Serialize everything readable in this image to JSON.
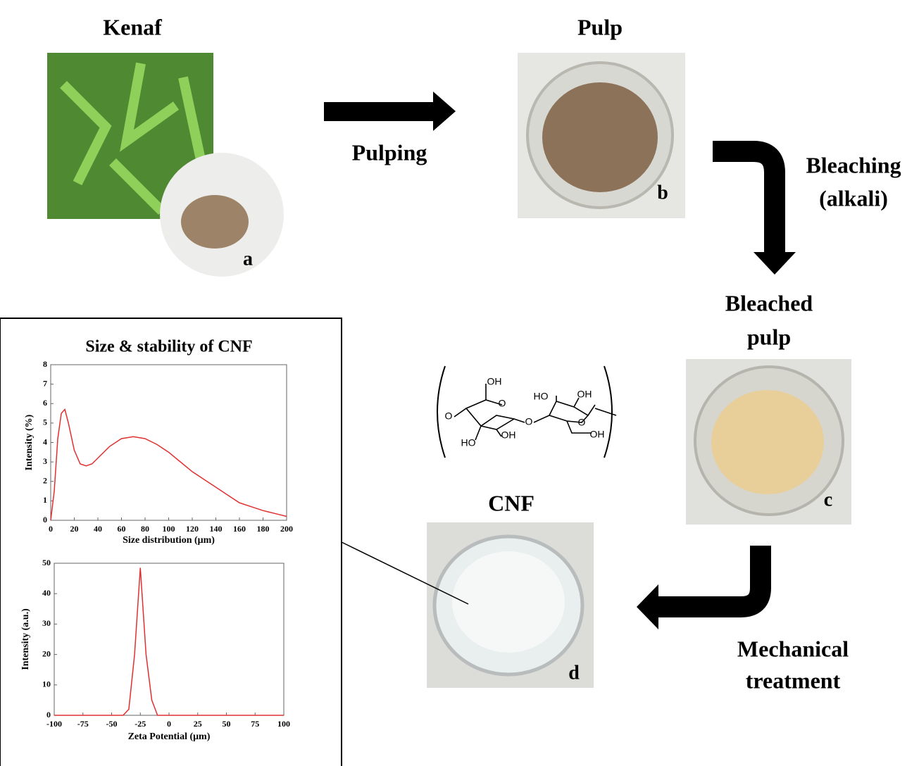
{
  "labels": {
    "kenaf": "Kenaf",
    "pulp": "Pulp",
    "pulping": "Pulping",
    "bleaching": [
      "Bleaching",
      "(alkali)"
    ],
    "bleached_pulp": [
      "Bleached",
      "pulp"
    ],
    "cnf": "CNF",
    "mechanical": [
      "Mechanical",
      "treatment"
    ],
    "photo_tags": [
      "a",
      "b",
      "c",
      "d"
    ]
  },
  "structure": {
    "labels": [
      "OH",
      "HO",
      "OH",
      "HO",
      "OH",
      "OH",
      "O",
      "O",
      "O",
      "O"
    ]
  },
  "charts": [
    {
      "type": "line",
      "title": "Size & stability of CNF",
      "xlabel": "Size distribution (μm)",
      "ylabel": "Intensity (%)",
      "x": [
        0,
        3,
        6,
        9,
        12,
        15,
        20,
        25,
        30,
        35,
        40,
        50,
        60,
        70,
        80,
        90,
        100,
        110,
        120,
        130,
        140,
        150,
        160,
        170,
        180,
        190,
        200
      ],
      "values": [
        0,
        1.5,
        4.2,
        5.5,
        5.7,
        5.0,
        3.6,
        2.9,
        2.8,
        2.9,
        3.2,
        3.8,
        4.2,
        4.3,
        4.2,
        3.9,
        3.5,
        3.0,
        2.5,
        2.1,
        1.7,
        1.3,
        0.9,
        0.7,
        0.5,
        0.35,
        0.2
      ],
      "color": "#e03030",
      "xlim": [
        0,
        200
      ],
      "ylim": [
        0,
        8
      ],
      "xticks": [
        0,
        20,
        40,
        60,
        80,
        100,
        120,
        140,
        160,
        180,
        200
      ],
      "yticks": [
        0,
        1,
        2,
        3,
        4,
        5,
        6,
        7,
        8
      ]
    },
    {
      "type": "line",
      "xlabel": "Zeta Potential (μm)",
      "ylabel": "Intensity (a.u.)",
      "x": [
        -100,
        -50,
        -40,
        -35,
        -30,
        -25,
        -20,
        -15,
        -10,
        0,
        50,
        100
      ],
      "values": [
        0,
        0,
        0,
        2,
        20,
        48.5,
        20,
        5,
        0,
        0,
        0,
        0
      ],
      "color": "#e03030",
      "xlim": [
        -100,
        100
      ],
      "ylim": [
        0,
        50
      ],
      "xticks": [
        -100,
        -75,
        -50,
        -25,
        0,
        25,
        50,
        75,
        100
      ],
      "yticks": [
        0,
        10,
        20,
        30,
        40,
        50
      ]
    }
  ]
}
